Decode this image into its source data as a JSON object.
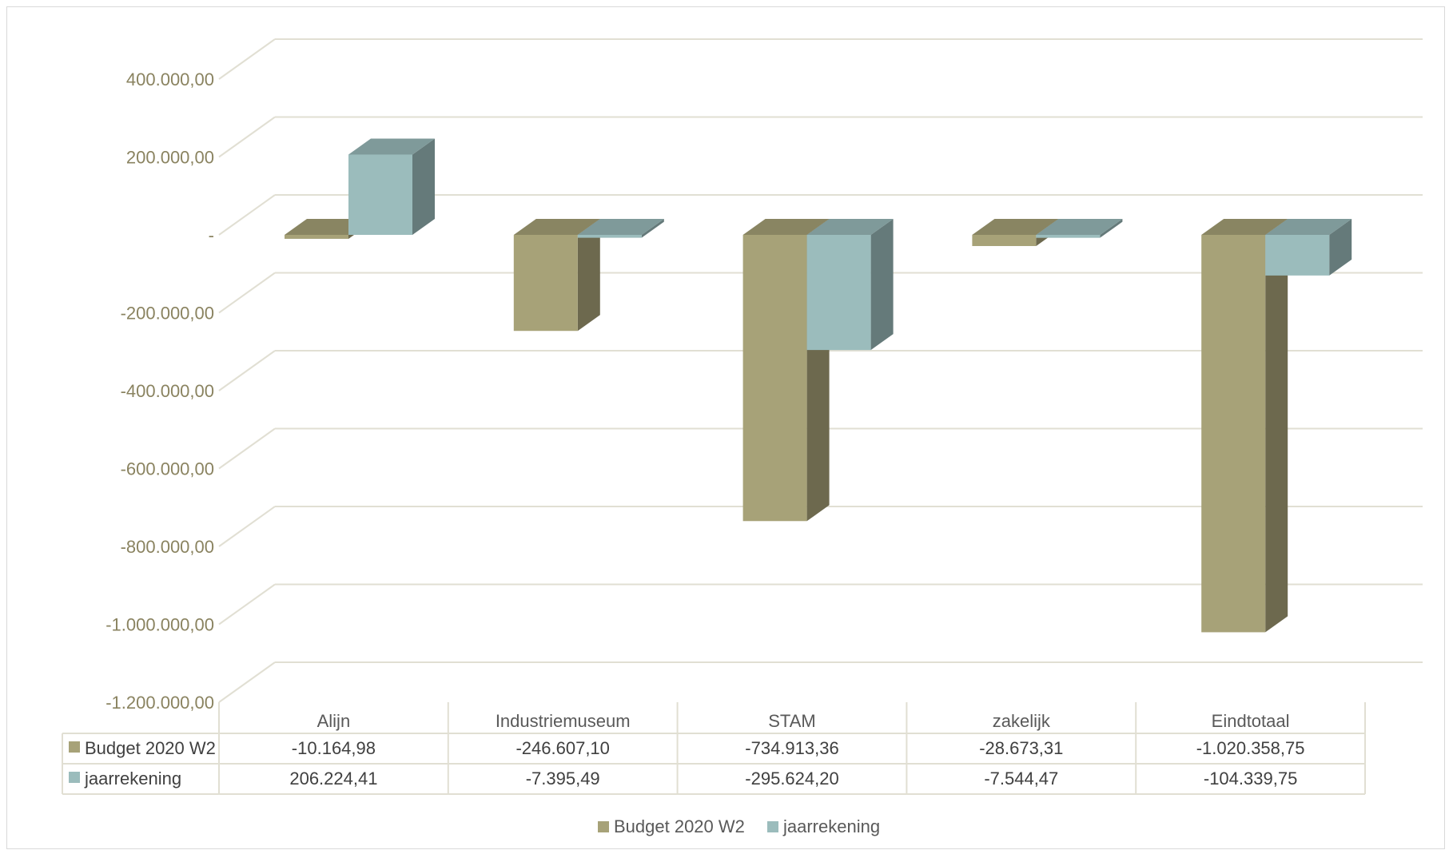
{
  "chart_data": {
    "type": "bar",
    "view": "3d-clustered-column-with-data-table",
    "categories": [
      "Alijn",
      "Industriemuseum",
      "STAM",
      "zakelijk",
      "Eindtotaal"
    ],
    "series": [
      {
        "name": "Budget 2020 W2",
        "color": "#a7a278",
        "values": [
          -10164.98,
          -246607.1,
          -734913.36,
          -28673.31,
          -1020358.75
        ],
        "labels": [
          "-10.164,98",
          "-246.607,10",
          "-734.913,36",
          "-28.673,31",
          "-1.020.358,75"
        ]
      },
      {
        "name": "jaarrekening",
        "color": "#9bbcbc",
        "values": [
          206224.41,
          -7395.49,
          -295624.2,
          -7544.47,
          -104339.75
        ],
        "labels": [
          "206.224,41",
          "-7.395,49",
          "-295.624,20",
          "-7.544,47",
          "-104.339,75"
        ]
      }
    ],
    "ylim": [
      -1200000,
      400000
    ],
    "yticks": [
      400000,
      200000,
      0,
      -200000,
      -400000,
      -600000,
      -800000,
      -1000000,
      -1200000
    ],
    "ytick_labels": [
      "400.000,00",
      "200.000,00",
      "-",
      "-200.000,00",
      "-400.000,00",
      "-600.000,00",
      "-800.000,00",
      "-1.000.000,00",
      "-1.200.000,00"
    ],
    "grid": true,
    "legend_position": "bottom",
    "title": "",
    "xlabel": "",
    "ylabel": ""
  }
}
